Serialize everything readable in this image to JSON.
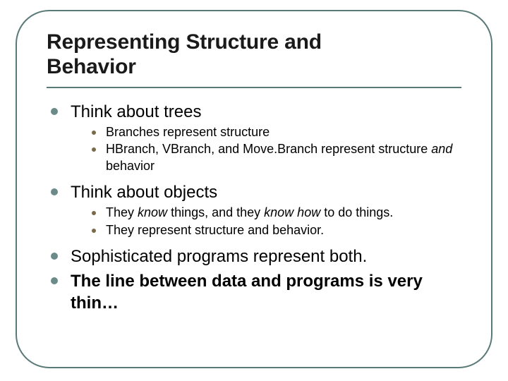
{
  "colors": {
    "frame_border": "#5a7a78",
    "rule": "#5a7a78",
    "lvl1_bullet": "#6b8b8a",
    "lvl2_bullet": "#7a6a4a",
    "text": "#000000",
    "background": "#ffffff"
  },
  "typography": {
    "title_fontsize": 30,
    "title_weight": 900,
    "lvl1_fontsize": 24,
    "lvl2_fontsize": 18,
    "font_family": "Arial"
  },
  "title_line1": "Representing Structure and",
  "title_line2": "Behavior",
  "items": [
    {
      "text": "Think about trees",
      "bold": false,
      "sub": [
        {
          "text": "Branches represent structure"
        },
        {
          "html": "HBranch, VBranch, and Move.Branch represent structure <em class='and'>and</em> behavior"
        }
      ]
    },
    {
      "text": "Think about objects",
      "bold": false,
      "sub": [
        {
          "html": "They <em class='kn'>know</em> things, and they <em class='kn'>know how</em> to do things."
        },
        {
          "text": "They represent structure and behavior."
        }
      ]
    },
    {
      "text": "Sophisticated programs represent both.",
      "bold": false,
      "sub": []
    },
    {
      "text": "The line between data and programs is very thin…",
      "bold": true,
      "sub": []
    }
  ]
}
